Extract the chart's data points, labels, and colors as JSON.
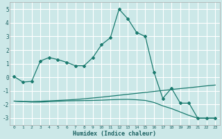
{
  "xlabel": "Humidex (Indice chaleur)",
  "background_color": "#cce8e8",
  "grid_color": "#ffffff",
  "line_color": "#1a7a6e",
  "xlim": [
    -0.5,
    23.5
  ],
  "ylim": [
    -3.5,
    5.5
  ],
  "xticks": [
    0,
    1,
    2,
    3,
    4,
    5,
    6,
    7,
    8,
    9,
    10,
    11,
    12,
    13,
    14,
    15,
    16,
    17,
    18,
    19,
    20,
    21,
    22,
    23
  ],
  "yticks": [
    -3,
    -2,
    -1,
    0,
    1,
    2,
    3,
    4,
    5
  ],
  "series1_x": [
    0,
    1,
    2,
    3,
    4,
    5,
    6,
    7,
    8,
    9,
    10,
    11,
    12,
    13,
    14,
    15,
    16,
    17,
    18,
    19,
    20,
    21,
    22,
    23
  ],
  "series1_y": [
    0.05,
    -0.35,
    -0.3,
    1.2,
    1.45,
    1.3,
    1.1,
    0.85,
    0.85,
    1.45,
    2.4,
    2.9,
    5.0,
    4.3,
    3.3,
    3.0,
    0.35,
    -1.55,
    -0.8,
    -1.9,
    -1.9,
    -3.0,
    -3.0,
    -3.0
  ],
  "series2_x": [
    0,
    1,
    2,
    3,
    4,
    5,
    6,
    7,
    8,
    9,
    10,
    11,
    12,
    13,
    14,
    15,
    16,
    17,
    18,
    19,
    20,
    21,
    22,
    23
  ],
  "series2_y": [
    -1.75,
    -1.78,
    -1.78,
    -1.76,
    -1.73,
    -1.7,
    -1.67,
    -1.63,
    -1.58,
    -1.52,
    -1.46,
    -1.39,
    -1.32,
    -1.25,
    -1.18,
    -1.11,
    -1.04,
    -0.97,
    -0.9,
    -0.83,
    -0.77,
    -0.7,
    -0.63,
    -0.57
  ],
  "series3_x": [
    0,
    1,
    2,
    3,
    4,
    5,
    6,
    7,
    8,
    9,
    10,
    11,
    12,
    13,
    14,
    15,
    16,
    17,
    18,
    19,
    20,
    21,
    22,
    23
  ],
  "series3_y": [
    -1.75,
    -1.78,
    -1.82,
    -1.82,
    -1.79,
    -1.76,
    -1.73,
    -1.72,
    -1.71,
    -1.7,
    -1.68,
    -1.65,
    -1.63,
    -1.62,
    -1.65,
    -1.7,
    -1.85,
    -2.1,
    -2.3,
    -2.55,
    -2.8,
    -3.0,
    -3.0,
    -3.0
  ]
}
